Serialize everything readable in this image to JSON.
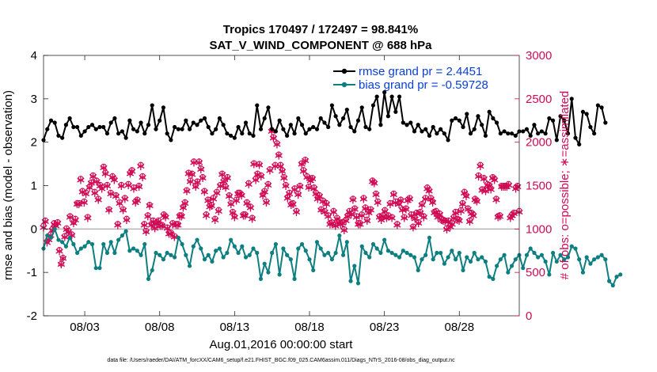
{
  "chart_data": {
    "type": "line",
    "title": "Tropics 170497 / 172497 = 98.841%",
    "subtitle": "SAT_V_WIND_COMPONENT @ 688 hPa",
    "xlabel": "Aug.01,2016 00:00:00 start",
    "ylabel": "rmse and bias (model - observation)",
    "y2label": "# of obs: o=possible; ∗=assimilated",
    "footnote": "data file: /Users/raeder/DAI/ATM_forcXX/CAM6_setup/f.e21.FHIST_BGC.f09_025.CAM6assim.011/Diags_NTrS_2016-08/obs_diag_output.nc",
    "xlim": [
      0.25,
      32.0
    ],
    "ylim": [
      -2,
      4
    ],
    "y2lim": [
      0,
      3000
    ],
    "xticks": [
      3,
      8,
      13,
      18,
      23,
      28
    ],
    "xticklabels": [
      "08/03",
      "08/08",
      "08/13",
      "08/18",
      "08/23",
      "08/28"
    ],
    "yticks": [
      -2,
      -1,
      0,
      1,
      2,
      3,
      4
    ],
    "yticklabels": [
      "-2",
      "-1",
      "0",
      "1",
      "2",
      "3",
      "4"
    ],
    "y2ticks": [
      0,
      500,
      1000,
      1500,
      2000,
      2500,
      3000
    ],
    "y2ticklabels": [
      "0",
      "500",
      "1000",
      "1500",
      "2000",
      "2500",
      "3000"
    ],
    "x_start": 0.25,
    "x_step": 0.25,
    "series": [
      {
        "name": "rmse",
        "legend": "rmse grand pr = 2.4451",
        "color": "#000000",
        "values": [
          2.05,
          2.3,
          2.5,
          2.45,
          2.15,
          2.1,
          2.4,
          2.55,
          2.35,
          2.35,
          2.15,
          2.25,
          2.35,
          2.4,
          2.3,
          2.35,
          2.35,
          2.2,
          2.45,
          2.55,
          2.2,
          2.25,
          2.1,
          2.5,
          2.3,
          2.25,
          2.45,
          2.2,
          2.4,
          2.85,
          2.3,
          2.5,
          2.8,
          2.2,
          2.05,
          2.35,
          2.3,
          2.3,
          2.5,
          2.3,
          2.45,
          2.4,
          2.5,
          2.55,
          2.35,
          2.2,
          2.3,
          2.55,
          2.4,
          2.2,
          2.15,
          2.1,
          2.35,
          2.2,
          2.45,
          2.2,
          2.15,
          2.85,
          2.3,
          2.55,
          2.8,
          2.3,
          2.25,
          2.5,
          2.3,
          2.15,
          2.4,
          2.2,
          2.55,
          2.4,
          2.2,
          2.3,
          2.35,
          2.3,
          2.55,
          2.45,
          2.35,
          2.85,
          2.6,
          2.4,
          2.55,
          2.75,
          2.35,
          2.25,
          2.5,
          2.8,
          2.35,
          2.3,
          2.85,
          3.05,
          2.4,
          3.15,
          2.6,
          3.05,
          2.7,
          3.05,
          2.45,
          2.4,
          2.45,
          2.25,
          2.4,
          2.25,
          2.3,
          2.15,
          2.35,
          2.2,
          2.3,
          2.2,
          2.05,
          2.5,
          2.55,
          2.5,
          2.35,
          2.65,
          2.2,
          2.3,
          2.6,
          2.4,
          2.15,
          2.7,
          2.55,
          2.45,
          2.2,
          2.25,
          2.2,
          2.2,
          2.15,
          2.25,
          2.25,
          2.3,
          2.15,
          2.4,
          2.2,
          2.25,
          2.2,
          2.55,
          2.5,
          2.05,
          2.6,
          2.5,
          2.2,
          3.0,
          2.1,
          1.95,
          2.7,
          2.65,
          2.35,
          2.2,
          2.85,
          2.8,
          2.45
        ]
      },
      {
        "name": "bias",
        "legend": "bias grand pr = -0.59728",
        "color": "#0e7f80",
        "values": [
          -0.45,
          -0.15,
          -0.2,
          0.0,
          -0.25,
          -0.3,
          -0.4,
          -0.2,
          -0.35,
          -0.55,
          -0.45,
          -0.4,
          -0.3,
          -0.35,
          -0.9,
          -0.9,
          -0.35,
          -0.55,
          -0.3,
          -0.55,
          -0.25,
          -0.15,
          -0.05,
          -0.5,
          -0.45,
          -0.5,
          -0.6,
          -0.35,
          -1.15,
          -0.95,
          -0.55,
          -0.6,
          -0.7,
          -0.55,
          -0.6,
          -0.65,
          -0.2,
          -0.35,
          -0.6,
          -0.85,
          -0.4,
          -0.25,
          -0.45,
          -0.7,
          -0.6,
          -0.75,
          -0.5,
          -0.45,
          -0.65,
          -0.55,
          -0.25,
          -0.4,
          -0.55,
          -0.4,
          -0.65,
          -0.6,
          -0.45,
          -0.55,
          -1.15,
          -0.8,
          -1.0,
          -0.55,
          -0.35,
          -1.05,
          -0.45,
          -0.6,
          -0.7,
          -1.15,
          -0.45,
          -0.35,
          -0.5,
          -0.7,
          -0.95,
          -0.3,
          -0.45,
          -0.6,
          -0.55,
          -0.7,
          -0.55,
          -0.15,
          -0.6,
          -0.3,
          -1.2,
          -0.85,
          -1.25,
          -0.4,
          -0.55,
          -0.65,
          -0.35,
          -0.45,
          -0.55,
          -0.25,
          -0.5,
          -0.55,
          -0.6,
          -0.65,
          -0.5,
          -0.55,
          -0.6,
          -0.65,
          -0.95,
          -0.7,
          -0.6,
          -0.2,
          -0.7,
          -0.55,
          -0.55,
          -0.8,
          -0.65,
          -0.5,
          -0.7,
          -0.55,
          -0.95,
          -0.65,
          -0.75,
          -0.55,
          -0.7,
          -0.65,
          -0.75,
          -1.1,
          -1.15,
          -0.85,
          -0.7,
          -0.6,
          -1.0,
          -0.85,
          -0.7,
          -0.6,
          -0.9,
          -0.6,
          -0.45,
          -0.55,
          -0.65,
          -0.6,
          -0.75,
          -1.05,
          -0.55,
          -0.75,
          -0.6,
          -0.7,
          -0.65,
          -0.4,
          -0.45,
          -0.7,
          -1.0,
          -0.65,
          -0.8,
          -0.7,
          -0.65,
          -0.6,
          -0.7,
          -1.2,
          -1.3,
          -1.1,
          -1.05
        ]
      },
      {
        "name": "obs possible",
        "axis": "right",
        "marker": "o",
        "color": "#d10a55",
        "values": [
          1040,
          1100,
          860,
          890,
          940,
          1000,
          1070,
          1050,
          1080,
          760,
          600,
          670,
          920,
          1010,
          980,
          1150,
          940,
          1080,
          1120,
          1300,
          1300,
          1580,
          1440,
          1320,
          1420,
          1140,
          1490,
          1540,
          1620,
          1430,
          1560,
          1350,
          1510,
          1480,
          1720,
          1650,
          1510,
          1230,
          1420,
          1610,
          1580,
          1390,
          1060,
          1310,
          1510,
          1230,
          1360,
          1120,
          1520,
          1650,
          1680,
          1480,
          1320,
          1340,
          1500,
          1740,
          1610,
          1060,
          980,
          1160,
          1280,
          1060,
          1100,
          1020,
          1080,
          1100,
          1050,
          1050,
          1170,
          1150,
          1020,
          960,
          960,
          1070,
          920,
          1060,
          1060,
          1160,
          1160,
          1260,
          1310,
          1450,
          1650,
          1560,
          1640,
          1780,
          1500,
          1550,
          1780,
          1700,
          1600,
          1440,
          1170,
          1340,
          1270,
          1280,
          1360,
          1120,
          1430,
          1220,
          1510,
          1640,
          1560,
          1490,
          1600,
          1390,
          1300,
          1200,
          1150,
          1340,
          1420,
          1420,
          1400,
          1170,
          1170,
          1310,
          1530,
          1260,
          1130,
          1760,
          1580,
          1640,
          1750,
          1620,
          1400,
          1440,
          1320,
          1520,
          1690,
          2140,
          2060,
          1740,
          1990,
          1860,
          1740,
          1680,
          1600,
          1510,
          1370,
          1420,
          1290,
          1300,
          1470,
          1210,
          1410,
          1500,
          1760,
          1680,
          1800,
          1610,
          1490,
          1570,
          1590,
          1480,
          1420,
          1360,
          1390,
          1230,
          1330,
          1210,
          1300,
          1160,
          1070,
          1080,
          1210,
          1050,
          1130,
          1090,
          1070,
          1080,
          1000,
          1110,
          1160,
          1210,
          1180,
          1350,
          1240,
          1150,
          1070,
          1070,
          1170,
          1360,
          1250,
          1110,
          1200,
          1230,
          1560,
          1540,
          1410,
          1320,
          1150,
          1120,
          1160,
          1220,
          1140,
          1160,
          1300,
          1140,
          1410,
          1320,
          1060,
          1300,
          1340,
          1230,
          1140,
          1240,
          1340,
          1360,
          1170,
          1030,
          1130,
          1190,
          1080,
          1200,
          1290,
          1150,
          1360,
          1480,
          1450,
          1360,
          1320,
          1200,
          1210,
          1150,
          1180,
          1120,
          1110,
          1100,
          1010,
          1100,
          1040,
          1070,
          1140,
          1200,
          1120,
          1110,
          1220,
          1300,
          1430,
          1390,
          1240,
          1100,
          1190,
          1170,
          1350,
          1330,
          1620,
          1740,
          1460,
          1590,
          1450,
          1520,
          1510,
          1470,
          1600,
          1580,
          1350,
          1150,
          1160,
          1500,
          1500,
          1500,
          1500,
          1520,
          1140,
          1170,
          1190,
          1480,
          1500,
          1210
        ]
      },
      {
        "name": "obs assimilated",
        "axis": "right",
        "marker": "*",
        "color": "#d10a55",
        "values": [
          1020,
          1090,
          850,
          880,
          930,
          990,
          1060,
          1040,
          1070,
          750,
          595,
          665,
          910,
          1000,
          970,
          1140,
          930,
          1070,
          1110,
          1290,
          1290,
          1570,
          1430,
          1310,
          1410,
          1130,
          1480,
          1530,
          1610,
          1420,
          1550,
          1340,
          1500,
          1470,
          1710,
          1640,
          1500,
          1220,
          1410,
          1600,
          1570,
          1380,
          1050,
          1300,
          1500,
          1220,
          1350,
          1110,
          1510,
          1640,
          1670,
          1470,
          1310,
          1330,
          1490,
          1730,
          1600,
          1050,
          970,
          1150,
          1270,
          1050,
          1090,
          1010,
          1070,
          1090,
          1040,
          1040,
          1160,
          1140,
          1010,
          950,
          950,
          1060,
          910,
          1050,
          1050,
          1150,
          1150,
          1250,
          1300,
          1440,
          1640,
          1550,
          1630,
          1770,
          1490,
          1540,
          1770,
          1690,
          1590,
          1430,
          1160,
          1330,
          1260,
          1270,
          1350,
          1110,
          1420,
          1210,
          1500,
          1630,
          1550,
          1480,
          1590,
          1380,
          1290,
          1190,
          1140,
          1330,
          1410,
          1410,
          1390,
          1160,
          1160,
          1300,
          1520,
          1250,
          1120,
          1750,
          1570,
          1630,
          1740,
          1610,
          1390,
          1430,
          1310,
          1510,
          1680,
          2130,
          2050,
          1730,
          1980,
          1850,
          1730,
          1670,
          1590,
          1500,
          1360,
          1410,
          1280,
          1290,
          1460,
          1200,
          1400,
          1490,
          1750,
          1670,
          1790,
          1600,
          1480,
          1560,
          1580,
          1470,
          1410,
          1350,
          1380,
          1220,
          1320,
          1200,
          1290,
          1150,
          1060,
          1070,
          1200,
          1040,
          1120,
          1080,
          1060,
          1070,
          990,
          1100,
          1150,
          1200,
          1170,
          1340,
          1230,
          1140,
          1060,
          1060,
          1160,
          1350,
          1240,
          1100,
          1190,
          1220,
          1550,
          1530,
          1400,
          1310,
          1140,
          1110,
          1150,
          1210,
          1130,
          1150,
          1290,
          1130,
          1400,
          1310,
          1050,
          1290,
          1330,
          1220,
          1130,
          1230,
          1330,
          1350,
          1160,
          1020,
          1120,
          1180,
          1070,
          1190,
          1280,
          1140,
          1350,
          1470,
          1440,
          1350,
          1310,
          1190,
          1200,
          1140,
          1170,
          1110,
          1100,
          1090,
          1000,
          1090,
          1030,
          1060,
          1130,
          1190,
          1110,
          1100,
          1210,
          1290,
          1420,
          1380,
          1230,
          1090,
          1180,
          1160,
          1340,
          1320,
          1610,
          1730,
          1450,
          1580,
          1440,
          1510,
          1500,
          1460,
          1590,
          1570,
          1340,
          1140,
          1150,
          1490,
          1490,
          1490,
          1490,
          1510,
          1130,
          1160,
          1180,
          1470,
          1490,
          1200
        ]
      }
    ]
  }
}
